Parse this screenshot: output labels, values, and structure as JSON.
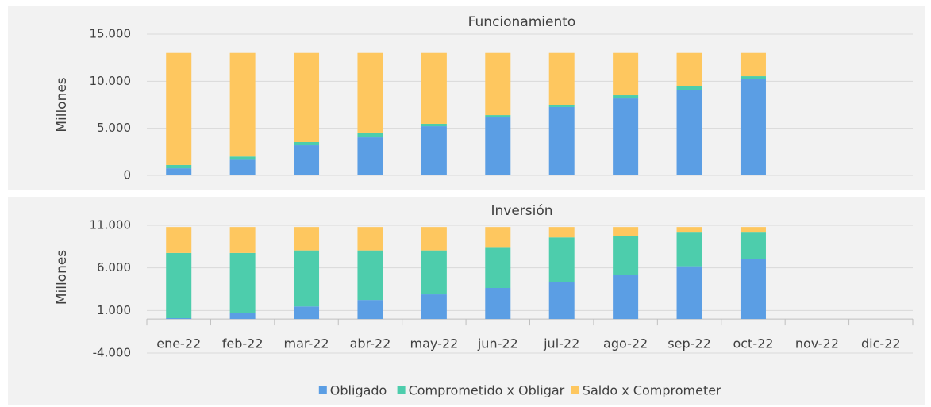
{
  "chart_data": [
    {
      "type": "stacked_bar",
      "title": "Funcionamiento",
      "y_label": "Millones",
      "ylim": [
        0,
        15000
      ],
      "yticks": [
        0,
        {
          "value": 5000,
          "label": "5.000"
        },
        {
          "value": 10000,
          "label": "10.000"
        },
        {
          "value": 15000,
          "label": "15.000"
        }
      ],
      "grid": true,
      "series": [
        {
          "color": "#5b9ee4",
          "values": [
            750,
            1650,
            3200,
            4040,
            5220,
            6150,
            7250,
            8170,
            9100,
            10200,
            null,
            null
          ]
        },
        {
          "color": "#4dcdac",
          "values": [
            350,
            350,
            340,
            430,
            260,
            250,
            250,
            340,
            420,
            330,
            null,
            null
          ]
        },
        {
          "color": "#fec75f",
          "values": [
            11900,
            11000,
            9460,
            8530,
            7520,
            6600,
            5500,
            4490,
            3480,
            2470,
            null,
            null
          ]
        }
      ]
    },
    {
      "type": "stacked_bar",
      "title": "Inversión",
      "y_label": "Millones",
      "ylim": [
        -4000,
        11000
      ],
      "yticks": [
        {
          "value": -4000,
          "label": "-4.000"
        },
        {
          "value": 1000,
          "label": "1.000"
        },
        {
          "value": 6000,
          "label": "6.000"
        },
        {
          "value": 11000,
          "label": "11.000"
        }
      ],
      "grid": true,
      "categories": [
        "ene-22",
        "feb-22",
        "mar-22",
        "abr-22",
        "may-22",
        "jun-22",
        "jul-22",
        "ago-22",
        "sep-22",
        "oct-22",
        "nov-22",
        "dic-22"
      ],
      "series": [
        {
          "name": "Obligado",
          "color": "#5b9ee4",
          "values": [
            100,
            700,
            1470,
            2230,
            2890,
            3640,
            4300,
            5150,
            6190,
            7040,
            null,
            null
          ]
        },
        {
          "name": "Comprometido x Obligar",
          "color": "#4dcdac",
          "values": [
            7650,
            7050,
            6580,
            5820,
            5160,
            4810,
            5280,
            4620,
            3960,
            3110,
            null,
            null
          ]
        },
        {
          "name": "Saldo x Comprometer",
          "color": "#fec75f",
          "values": [
            3050,
            3050,
            2750,
            2750,
            2750,
            2350,
            1220,
            1030,
            650,
            650,
            null,
            null
          ]
        }
      ]
    }
  ]
}
